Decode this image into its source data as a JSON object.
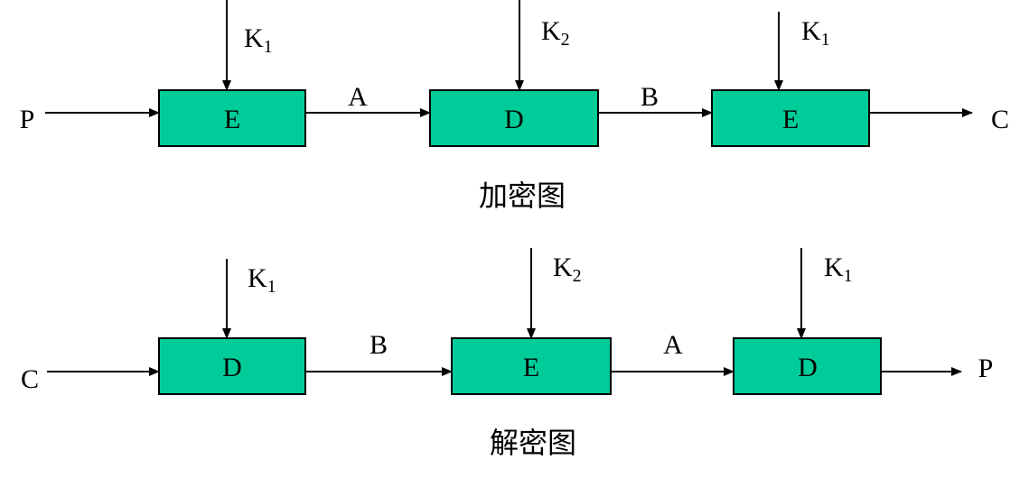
{
  "colors": {
    "box_fill": "#00CC99",
    "line": "#000000"
  },
  "encrypt": {
    "caption": "加密图",
    "input": "P",
    "output": "C",
    "boxes": [
      {
        "label": "E",
        "key": "K",
        "key_sub": "1"
      },
      {
        "label": "D",
        "key": "K",
        "key_sub": "2"
      },
      {
        "label": "E",
        "key": "K",
        "key_sub": "1"
      }
    ],
    "links": [
      "A",
      "B"
    ]
  },
  "decrypt": {
    "caption": "解密图",
    "input": "C",
    "output": "P",
    "boxes": [
      {
        "label": "D",
        "key": "K",
        "key_sub": "1"
      },
      {
        "label": "E",
        "key": "K",
        "key_sub": "2"
      },
      {
        "label": "D",
        "key": "K",
        "key_sub": "1"
      }
    ],
    "links": [
      "B",
      "A"
    ]
  }
}
